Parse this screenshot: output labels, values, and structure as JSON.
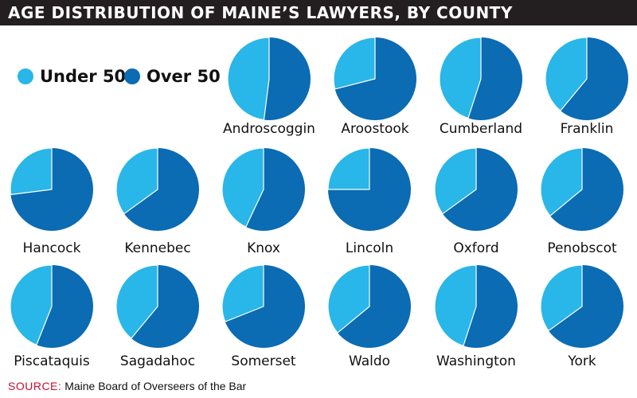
{
  "chart_data": {
    "type": "pie",
    "title": "AGE DISTRIBUTION OF MAINE’S LAWYERS, BY COUNTY",
    "legend": [
      {
        "label": "Under 50",
        "color": "#29b6e8"
      },
      {
        "label": "Over 50",
        "color": "#0b6bb3"
      }
    ],
    "legend_position": "top-left",
    "counties": [
      {
        "name": "Androscoggin",
        "under_50_pct": 48,
        "over_50_pct": 52
      },
      {
        "name": "Aroostook",
        "under_50_pct": 29,
        "over_50_pct": 71
      },
      {
        "name": "Cumberland",
        "under_50_pct": 45,
        "over_50_pct": 55
      },
      {
        "name": "Franklin",
        "under_50_pct": 39,
        "over_50_pct": 61
      },
      {
        "name": "Hancock",
        "under_50_pct": 27,
        "over_50_pct": 73
      },
      {
        "name": "Kennebec",
        "under_50_pct": 35,
        "over_50_pct": 65
      },
      {
        "name": "Knox",
        "under_50_pct": 43,
        "over_50_pct": 57
      },
      {
        "name": "Lincoln",
        "under_50_pct": 25,
        "over_50_pct": 75
      },
      {
        "name": "Oxford",
        "under_50_pct": 35,
        "over_50_pct": 65
      },
      {
        "name": "Penobscot",
        "under_50_pct": 36,
        "over_50_pct": 64
      },
      {
        "name": "Piscataquis",
        "under_50_pct": 44,
        "over_50_pct": 56
      },
      {
        "name": "Sagadahoc",
        "under_50_pct": 39,
        "over_50_pct": 61
      },
      {
        "name": "Somerset",
        "under_50_pct": 31,
        "over_50_pct": 69
      },
      {
        "name": "Waldo",
        "under_50_pct": 36,
        "over_50_pct": 64
      },
      {
        "name": "Washington",
        "under_50_pct": 45,
        "over_50_pct": 55
      },
      {
        "name": "York",
        "under_50_pct": 35,
        "over_50_pct": 65
      }
    ]
  },
  "source": {
    "label": "SOURCE:",
    "text": "Maine Board of Overseers of the Bar"
  }
}
